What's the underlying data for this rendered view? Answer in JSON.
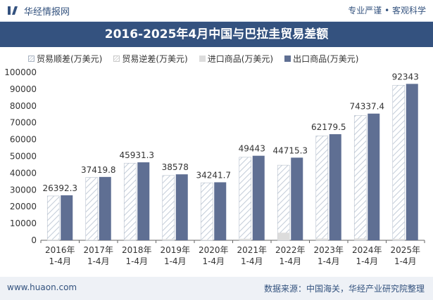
{
  "header": {
    "brand": "华经情报网",
    "tagline": "专业严谨 • 客观科学"
  },
  "footer": {
    "site": "www.huaon.com",
    "source": "数据来源：中国海关，华经产业研究院整理"
  },
  "colors": {
    "export": "#5f6f93",
    "import": "#dcdcdc",
    "surplus_hatch": "#cfd6df",
    "title_bg": "#34527f"
  },
  "chart_data": {
    "type": "bar",
    "title": "2016-2025年4月中国与巴拉圭贸易差额",
    "categories": [
      "2016年\n1-4月",
      "2017年\n1-4月",
      "2018年\n1-4月",
      "2019年\n1-4月",
      "2020年\n1-4月",
      "2021年\n1-4月",
      "2022年\n1-4月",
      "2023年\n1-4月",
      "2024年\n1-4月",
      "2025年\n1-4月"
    ],
    "series": [
      {
        "name": "贸易顺差(万美元)",
        "values": [
          26392.3,
          37419.8,
          45931.3,
          38578,
          34241.7,
          49443,
          44715.3,
          62179.5,
          74337.4,
          92343
        ]
      },
      {
        "name": "贸易逆差(万美元)",
        "values": [
          0,
          0,
          0,
          0,
          0,
          0,
          0,
          0,
          0,
          0
        ]
      },
      {
        "name": "进口商品(万美元)",
        "values": [
          400,
          300,
          500,
          700,
          300,
          900,
          4500,
          1000,
          1100,
          800
        ]
      },
      {
        "name": "出口商品(万美元)",
        "values": [
          26792.3,
          37719.8,
          46431.3,
          39278,
          34541.7,
          50343,
          49215.3,
          63179.5,
          75437.4,
          93143
        ]
      }
    ],
    "data_labels": [
      "26392.3",
      "37419.8",
      "45931.3",
      "38578",
      "34241.7",
      "49443",
      "44715.3",
      "62179.5",
      "74337.4",
      "92343"
    ],
    "ylim": [
      0,
      100000
    ],
    "yticks": [
      0,
      10000,
      20000,
      30000,
      40000,
      50000,
      60000,
      70000,
      80000,
      90000,
      100000
    ],
    "xlabel": "",
    "ylabel": "",
    "grid": false,
    "legend": "top"
  }
}
